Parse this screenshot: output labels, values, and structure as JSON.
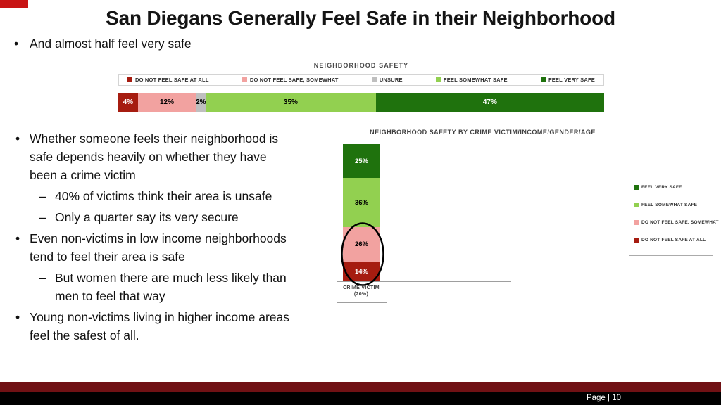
{
  "slide": {
    "title": "San Diegans Generally Feel Safe in their Neighborhood",
    "page_label": "Page | 10",
    "accent_color": "#C81414",
    "footer_bar_color": "#701114",
    "footer_strip_color": "#000000"
  },
  "glyphs": {
    "bullet": "•",
    "dash": "–"
  },
  "intro_bullet": "And almost half feel very safe",
  "body_bullets": [
    {
      "level": 1,
      "text": "Whether someone feels their neighborhood is\nsafe depends heavily on whether they have\nbeen a crime victim"
    },
    {
      "level": 2,
      "text": "40% of victims think their area is unsafe"
    },
    {
      "level": 2,
      "text": "Only a quarter say its very secure"
    },
    {
      "level": 1,
      "text": "Even non-victims in low income neighborhoods\ntend to feel their area is safe"
    },
    {
      "level": 2,
      "text": "But women there are much less likely than\nmen to feel that way"
    },
    {
      "level": 1,
      "text": "Young non-victims living in higher income areas\nfeel the safest of all."
    }
  ],
  "chart_data": [
    {
      "type": "bar",
      "orientation": "horizontal",
      "stacked": true,
      "title": "NEIGHBORHOOD SAFETY",
      "legend_position": "top",
      "categories": [
        ""
      ],
      "series": [
        {
          "name": "DO NOT FEEL SAFE AT ALL",
          "color": "#A61C10",
          "label_color": "#FFFFFF",
          "values": [
            4
          ]
        },
        {
          "name": "DO NOT FEEL SAFE, SOMEWHAT",
          "color": "#F2A2A0",
          "label_color": "#000000",
          "values": [
            12
          ]
        },
        {
          "name": "UNSURE",
          "color": "#BFBFBF",
          "label_color": "#000000",
          "values": [
            2
          ]
        },
        {
          "name": "FEEL SOMEWHAT SAFE",
          "color": "#92D050",
          "label_color": "#000000",
          "values": [
            35
          ]
        },
        {
          "name": "FEEL VERY SAFE",
          "color": "#1F720D",
          "label_color": "#FFFFFF",
          "values": [
            47
          ]
        }
      ],
      "xlim": [
        0,
        100
      ],
      "value_suffix": "%"
    },
    {
      "type": "bar",
      "orientation": "vertical",
      "stacked": true,
      "title": "NEIGHBORHOOD SAFETY BY CRIME VICTIM/INCOME/GENDER/AGE",
      "legend_position": "right",
      "categories": [
        "CRIME VICTIM (20%)"
      ],
      "series": [
        {
          "name": "FEEL VERY SAFE",
          "color": "#1F720D",
          "label_color": "#FFFFFF",
          "values": [
            25
          ]
        },
        {
          "name": "FEEL SOMEWHAT SAFE",
          "color": "#92D050",
          "label_color": "#000000",
          "values": [
            36
          ]
        },
        {
          "name": "DO NOT FEEL SAFE, SOMEWHAT",
          "color": "#F2A2A0",
          "label_color": "#000000",
          "values": [
            26
          ]
        },
        {
          "name": "DO NOT FEEL SAFE AT ALL",
          "color": "#A61C10",
          "label_color": "#FFFFFF",
          "values": [
            14
          ]
        }
      ],
      "ylim": [
        0,
        100
      ],
      "value_suffix": "%",
      "annotation": {
        "shape": "ellipse",
        "highlights": [
          "DO NOT FEEL SAFE, SOMEWHAT",
          "DO NOT FEEL SAFE AT ALL"
        ]
      }
    }
  ]
}
